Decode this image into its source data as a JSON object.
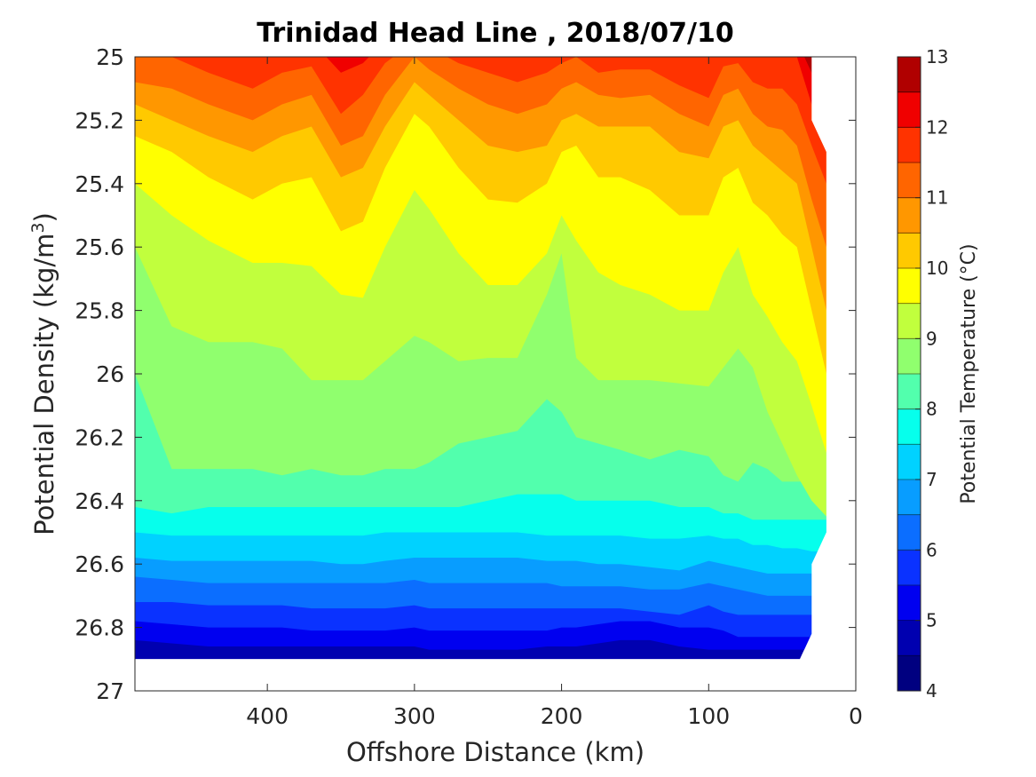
{
  "chart_data": {
    "type": "contour",
    "title": "Trinidad Head Line , 2018/07/10",
    "xlabel": "Offshore Distance (km)",
    "ylabel": "Potential Density (kg/m",
    "ylabel_sup": "3",
    "ylabel_close": ")",
    "xlim": [
      490,
      0
    ],
    "ylim": [
      25,
      27
    ],
    "x_ticks": [
      {
        "value": 400,
        "label": "400"
      },
      {
        "value": 300,
        "label": "300"
      },
      {
        "value": 200,
        "label": "200"
      },
      {
        "value": 100,
        "label": "100"
      },
      {
        "value": 0,
        "label": "0"
      }
    ],
    "y_ticks": [
      {
        "value": 25,
        "label": "25"
      },
      {
        "value": 25.2,
        "label": "25.2"
      },
      {
        "value": 25.4,
        "label": "25.4"
      },
      {
        "value": 25.6,
        "label": "25.6"
      },
      {
        "value": 25.8,
        "label": "25.8"
      },
      {
        "value": 26,
        "label": "26"
      },
      {
        "value": 26.2,
        "label": "26.2"
      },
      {
        "value": 26.4,
        "label": "26.4"
      },
      {
        "value": 26.6,
        "label": "26.6"
      },
      {
        "value": 26.8,
        "label": "26.8"
      },
      {
        "value": 27,
        "label": "27"
      }
    ],
    "colorbar": {
      "label": "Potential Temperature (°C)",
      "range": [
        4,
        13
      ],
      "ticks": [
        {
          "value": 13,
          "label": "13"
        },
        {
          "value": 12,
          "label": "12"
        },
        {
          "value": 11,
          "label": "11"
        },
        {
          "value": 10,
          "label": "10"
        },
        {
          "value": 9,
          "label": "9"
        },
        {
          "value": 8,
          "label": "8"
        },
        {
          "value": 7,
          "label": "7"
        },
        {
          "value": 6,
          "label": "6"
        },
        {
          "value": 5,
          "label": "5"
        },
        {
          "value": 4,
          "label": "4"
        }
      ],
      "levels": [
        {
          "min": 4.0,
          "max": 4.5,
          "color": "#000080"
        },
        {
          "min": 4.5,
          "max": 5.0,
          "color": "#0000b0"
        },
        {
          "min": 5.0,
          "max": 5.5,
          "color": "#0000f0"
        },
        {
          "min": 5.5,
          "max": 6.0,
          "color": "#0a32ff"
        },
        {
          "min": 6.0,
          "max": 6.5,
          "color": "#0b6eff"
        },
        {
          "min": 6.5,
          "max": 7.0,
          "color": "#089dff"
        },
        {
          "min": 7.0,
          "max": 7.5,
          "color": "#00d2ff"
        },
        {
          "min": 7.5,
          "max": 8.0,
          "color": "#06ffec"
        },
        {
          "min": 8.0,
          "max": 8.5,
          "color": "#52ffad"
        },
        {
          "min": 8.5,
          "max": 9.0,
          "color": "#90ff6e"
        },
        {
          "min": 9.0,
          "max": 9.5,
          "color": "#c1ff3d"
        },
        {
          "min": 9.5,
          "max": 10.0,
          "color": "#ffff00"
        },
        {
          "min": 10.0,
          "max": 10.5,
          "color": "#ffc900"
        },
        {
          "min": 10.5,
          "max": 11.0,
          "color": "#ff9700"
        },
        {
          "min": 11.0,
          "max": 11.5,
          "color": "#ff6500"
        },
        {
          "min": 11.5,
          "max": 12.0,
          "color": "#ff3300"
        },
        {
          "min": 12.0,
          "max": 12.5,
          "color": "#f00000"
        },
        {
          "min": 12.5,
          "max": 13.0,
          "color": "#b00000"
        }
      ]
    },
    "x_stations": [
      490,
      465,
      440,
      410,
      390,
      370,
      350,
      335,
      320,
      300,
      290,
      270,
      250,
      230,
      210,
      200,
      190,
      175,
      160,
      140,
      120,
      100,
      90,
      80,
      70,
      60,
      50,
      40,
      30,
      20
    ],
    "contour_boundaries": [
      {
        "temp": 12.5,
        "density": [
          24.95,
          24.95,
          24.95,
          24.95,
          24.95,
          24.95,
          24.95,
          24.95,
          24.95,
          24.95,
          24.95,
          24.95,
          24.95,
          24.95,
          24.95,
          24.95,
          24.95,
          24.95,
          24.95,
          24.95,
          24.95,
          24.95,
          24.95,
          24.95,
          24.95,
          24.95,
          24.95,
          24.95,
          25.05,
          25.15
        ]
      },
      {
        "temp": 12.0,
        "density": [
          24.95,
          24.95,
          24.95,
          24.95,
          24.95,
          24.95,
          25.05,
          25.02,
          24.95,
          24.95,
          24.95,
          24.95,
          24.95,
          24.95,
          24.95,
          24.95,
          24.95,
          24.95,
          24.95,
          24.95,
          24.98,
          25.0,
          24.95,
          24.95,
          24.95,
          24.95,
          24.96,
          25.0,
          25.15,
          25.25
        ]
      },
      {
        "temp": 11.5,
        "density": [
          25.0,
          25.0,
          25.05,
          25.1,
          25.05,
          25.03,
          25.18,
          25.12,
          25.02,
          24.95,
          24.97,
          25.02,
          25.05,
          25.08,
          25.05,
          25.02,
          25.0,
          25.05,
          25.04,
          25.04,
          25.09,
          25.13,
          25.03,
          25.02,
          25.08,
          25.1,
          25.1,
          25.15,
          25.28,
          25.4
        ]
      },
      {
        "temp": 11.0,
        "density": [
          25.08,
          25.1,
          25.15,
          25.2,
          25.15,
          25.12,
          25.28,
          25.25,
          25.12,
          25.0,
          25.04,
          25.1,
          25.15,
          25.18,
          25.15,
          25.1,
          25.08,
          25.12,
          25.13,
          25.12,
          25.18,
          25.22,
          25.12,
          25.1,
          25.18,
          25.22,
          25.23,
          25.28,
          25.45,
          25.6
        ]
      },
      {
        "temp": 10.5,
        "density": [
          25.15,
          25.2,
          25.25,
          25.3,
          25.25,
          25.22,
          25.38,
          25.35,
          25.22,
          25.08,
          25.12,
          25.2,
          25.28,
          25.3,
          25.28,
          25.2,
          25.18,
          25.22,
          25.22,
          25.22,
          25.3,
          25.32,
          25.22,
          25.2,
          25.28,
          25.32,
          25.36,
          25.4,
          25.6,
          25.8
        ]
      },
      {
        "temp": 10.0,
        "density": [
          25.25,
          25.3,
          25.38,
          25.45,
          25.4,
          25.38,
          25.55,
          25.52,
          25.35,
          25.18,
          25.22,
          25.35,
          25.45,
          25.46,
          25.4,
          25.3,
          25.28,
          25.38,
          25.38,
          25.42,
          25.5,
          25.5,
          25.38,
          25.35,
          25.46,
          25.5,
          25.56,
          25.6,
          25.8,
          26.0
        ]
      },
      {
        "temp": 9.5,
        "density": [
          25.4,
          25.5,
          25.58,
          25.65,
          25.65,
          25.66,
          25.75,
          25.76,
          25.6,
          25.42,
          25.48,
          25.62,
          25.72,
          25.72,
          25.62,
          25.5,
          25.58,
          25.68,
          25.72,
          25.75,
          25.8,
          25.8,
          25.68,
          25.6,
          25.75,
          25.82,
          25.9,
          25.96,
          26.1,
          26.25
        ]
      },
      {
        "temp": 9.0,
        "density": [
          25.6,
          25.85,
          25.9,
          25.9,
          25.92,
          26.02,
          26.02,
          26.02,
          25.96,
          25.88,
          25.9,
          25.96,
          25.95,
          25.95,
          25.75,
          25.62,
          25.95,
          26.02,
          26.02,
          26.02,
          26.03,
          26.04,
          25.98,
          25.92,
          25.98,
          26.12,
          26.22,
          26.32,
          26.4,
          26.45
        ]
      },
      {
        "temp": 8.5,
        "density": [
          26.0,
          26.3,
          26.3,
          26.3,
          26.32,
          26.3,
          26.32,
          26.32,
          26.3,
          26.3,
          26.28,
          26.22,
          26.2,
          26.18,
          26.08,
          26.12,
          26.2,
          26.22,
          26.24,
          26.27,
          26.24,
          26.26,
          26.32,
          26.34,
          26.28,
          26.3,
          26.34,
          26.34,
          26.34,
          26.34
        ]
      },
      {
        "temp": 8.0,
        "density": [
          26.42,
          26.44,
          26.42,
          26.42,
          26.42,
          26.42,
          26.42,
          26.42,
          26.42,
          26.42,
          26.42,
          26.42,
          26.4,
          26.38,
          26.38,
          26.38,
          26.4,
          26.4,
          26.4,
          26.4,
          26.42,
          26.42,
          26.44,
          26.44,
          26.46,
          26.46,
          26.46,
          26.46,
          26.46,
          26.46
        ]
      },
      {
        "temp": 7.5,
        "density": [
          26.5,
          26.51,
          26.51,
          26.51,
          26.51,
          26.51,
          26.51,
          26.51,
          26.5,
          26.5,
          26.5,
          26.5,
          26.5,
          26.5,
          26.51,
          26.51,
          26.51,
          26.51,
          26.51,
          26.52,
          26.52,
          26.51,
          26.52,
          26.52,
          26.54,
          26.54,
          26.55,
          26.55,
          26.56,
          26.56
        ]
      },
      {
        "temp": 7.0,
        "density": [
          26.58,
          26.59,
          26.59,
          26.59,
          26.59,
          26.59,
          26.6,
          26.6,
          26.59,
          26.58,
          26.58,
          26.58,
          26.58,
          26.58,
          26.59,
          26.59,
          26.59,
          26.6,
          26.6,
          26.61,
          26.62,
          26.59,
          26.6,
          26.61,
          26.62,
          26.63,
          26.63,
          26.63,
          26.63,
          26.63
        ]
      },
      {
        "temp": 6.5,
        "density": [
          26.64,
          26.65,
          26.66,
          26.66,
          26.66,
          26.66,
          26.66,
          26.66,
          26.66,
          26.65,
          26.66,
          26.66,
          26.66,
          26.66,
          26.66,
          26.67,
          26.67,
          26.67,
          26.67,
          26.68,
          26.68,
          26.66,
          26.67,
          26.68,
          26.69,
          26.7,
          26.7,
          26.7,
          26.7,
          26.7
        ]
      },
      {
        "temp": 6.0,
        "density": [
          26.72,
          26.72,
          26.73,
          26.73,
          26.73,
          26.74,
          26.74,
          26.74,
          26.74,
          26.73,
          26.74,
          26.74,
          26.74,
          26.74,
          26.74,
          26.74,
          26.74,
          26.74,
          26.74,
          26.75,
          26.76,
          26.73,
          26.75,
          26.76,
          26.76,
          26.76,
          26.76,
          26.76,
          26.76,
          26.76
        ]
      },
      {
        "temp": 5.5,
        "density": [
          26.78,
          26.79,
          26.8,
          26.8,
          26.8,
          26.81,
          26.81,
          26.81,
          26.81,
          26.8,
          26.81,
          26.81,
          26.81,
          26.81,
          26.81,
          26.8,
          26.8,
          26.79,
          26.78,
          26.78,
          26.8,
          26.8,
          26.81,
          26.83,
          26.83,
          26.83,
          26.83,
          26.83,
          26.83,
          26.83
        ]
      },
      {
        "temp": 5.0,
        "density": [
          26.84,
          26.85,
          26.86,
          26.86,
          26.86,
          26.86,
          26.86,
          26.86,
          26.86,
          26.86,
          26.87,
          26.87,
          26.87,
          26.87,
          26.86,
          26.86,
          26.86,
          26.85,
          26.84,
          26.84,
          26.86,
          26.87,
          26.87,
          26.87,
          26.87,
          26.87,
          26.87,
          26.87,
          26.87,
          26.87
        ]
      }
    ],
    "data_bottom_density": 26.9,
    "data_edge": [
      {
        "x": 30,
        "density": 25.0
      },
      {
        "x": 30,
        "density": 25.2
      },
      {
        "x": 20,
        "density": 25.3
      },
      {
        "x": 20,
        "density": 26.5
      },
      {
        "x": 30,
        "density": 26.6
      },
      {
        "x": 30,
        "density": 26.82
      },
      {
        "x": 38,
        "density": 26.9
      }
    ]
  }
}
